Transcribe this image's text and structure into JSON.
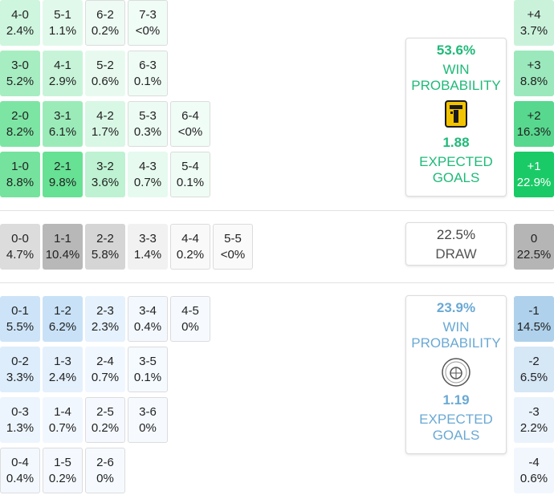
{
  "home": {
    "win_pct": "53.6%",
    "win_label": "WIN PROBABILITY",
    "xg": "1.88",
    "xg_label": "EXPECTED GOALS",
    "color": "#1fba78",
    "logo_icon": "ittihad-club-crest-icon"
  },
  "draw": {
    "pct": "22.5%",
    "label": "DRAW"
  },
  "away": {
    "win_pct": "23.9%",
    "win_label": "WIN PROBABILITY",
    "xg": "1.19",
    "xg_label": "EXPECTED GOALS",
    "color": "#6aa9d4",
    "logo_icon": "shabab-club-crest-icon"
  },
  "home_scores": [
    [
      {
        "score": "4-0",
        "pct": "2.4%"
      },
      {
        "score": "5-1",
        "pct": "1.1%"
      },
      {
        "score": "6-2",
        "pct": "0.2%"
      },
      {
        "score": "7-3",
        "pct": "<0%"
      }
    ],
    [
      {
        "score": "3-0",
        "pct": "5.2%"
      },
      {
        "score": "4-1",
        "pct": "2.9%"
      },
      {
        "score": "5-2",
        "pct": "0.6%"
      },
      {
        "score": "6-3",
        "pct": "0.1%"
      }
    ],
    [
      {
        "score": "2-0",
        "pct": "8.2%"
      },
      {
        "score": "3-1",
        "pct": "6.1%"
      },
      {
        "score": "4-2",
        "pct": "1.7%"
      },
      {
        "score": "5-3",
        "pct": "0.3%"
      },
      {
        "score": "6-4",
        "pct": "<0%"
      }
    ],
    [
      {
        "score": "1-0",
        "pct": "8.8%"
      },
      {
        "score": "2-1",
        "pct": "9.8%"
      },
      {
        "score": "3-2",
        "pct": "3.6%"
      },
      {
        "score": "4-3",
        "pct": "0.7%"
      },
      {
        "score": "5-4",
        "pct": "0.1%"
      }
    ]
  ],
  "draw_scores": [
    {
      "score": "0-0",
      "pct": "4.7%"
    },
    {
      "score": "1-1",
      "pct": "10.4%"
    },
    {
      "score": "2-2",
      "pct": "5.8%"
    },
    {
      "score": "3-3",
      "pct": "1.4%"
    },
    {
      "score": "4-4",
      "pct": "0.2%"
    },
    {
      "score": "5-5",
      "pct": "<0%"
    }
  ],
  "away_scores": [
    [
      {
        "score": "0-1",
        "pct": "5.5%"
      },
      {
        "score": "1-2",
        "pct": "6.2%"
      },
      {
        "score": "2-3",
        "pct": "2.3%"
      },
      {
        "score": "3-4",
        "pct": "0.4%"
      },
      {
        "score": "4-5",
        "pct": "0%"
      }
    ],
    [
      {
        "score": "0-2",
        "pct": "3.3%"
      },
      {
        "score": "1-3",
        "pct": "2.4%"
      },
      {
        "score": "2-4",
        "pct": "0.7%"
      },
      {
        "score": "3-5",
        "pct": "0.1%"
      }
    ],
    [
      {
        "score": "0-3",
        "pct": "1.3%"
      },
      {
        "score": "1-4",
        "pct": "0.7%"
      },
      {
        "score": "2-5",
        "pct": "0.2%"
      },
      {
        "score": "3-6",
        "pct": "0%"
      }
    ],
    [
      {
        "score": "0-4",
        "pct": "0.4%"
      },
      {
        "score": "1-5",
        "pct": "0.2%"
      },
      {
        "score": "2-6",
        "pct": "0%"
      }
    ]
  ],
  "margins_home": [
    {
      "margin": "+4",
      "pct": "3.7%"
    },
    {
      "margin": "+3",
      "pct": "8.8%"
    },
    {
      "margin": "+2",
      "pct": "16.3%"
    },
    {
      "margin": "+1",
      "pct": "22.9%"
    }
  ],
  "margin_draw": {
    "margin": "0",
    "pct": "22.5%"
  },
  "margins_away": [
    {
      "margin": "-1",
      "pct": "14.5%"
    },
    {
      "margin": "-2",
      "pct": "6.5%"
    },
    {
      "margin": "-3",
      "pct": "2.2%"
    },
    {
      "margin": "-4",
      "pct": "0.6%"
    }
  ]
}
